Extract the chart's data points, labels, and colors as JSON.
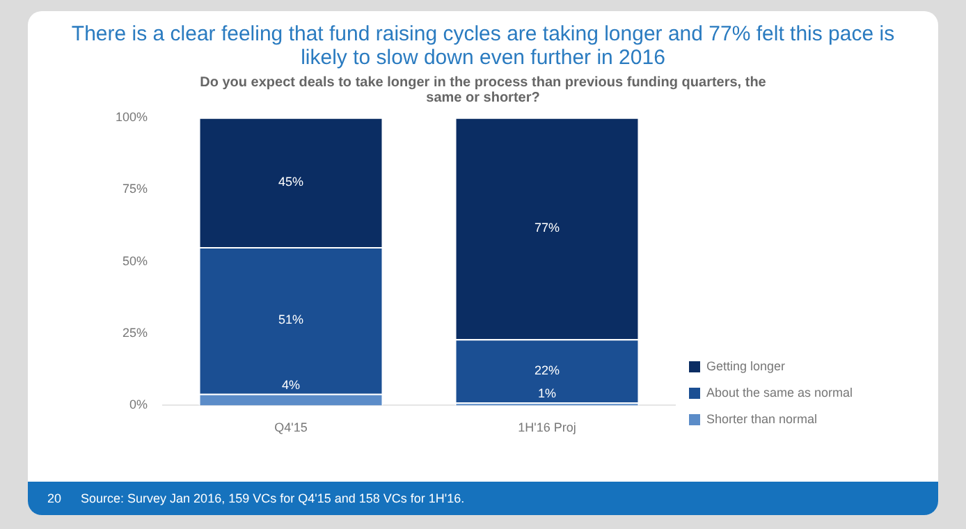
{
  "chart_data": {
    "type": "bar",
    "stacked": true,
    "title": "There is a clear feeling that fund raising cycles are taking longer and 77% felt this pace is likely to slow down even further in 2016",
    "subtitle": "Do you expect deals to take longer in the process than previous funding quarters, the same or shorter?",
    "categories": [
      "Q4'15",
      "1H'16 Proj"
    ],
    "series": [
      {
        "name": "Shorter than normal",
        "color": "#5b8cc8",
        "values": [
          4,
          1
        ],
        "value_labels": [
          "4%",
          "1%"
        ]
      },
      {
        "name": "About the same as normal",
        "color": "#1b4f93",
        "values": [
          51,
          22
        ],
        "value_labels": [
          "51%",
          "22%"
        ]
      },
      {
        "name": "Getting longer",
        "color": "#0b2d63",
        "values": [
          45,
          77
        ],
        "value_labels": [
          "45%",
          "77%"
        ]
      }
    ],
    "ylim": [
      0,
      100
    ],
    "yticks": [
      {
        "value": 0,
        "label": "0%"
      },
      {
        "value": 25,
        "label": "25%"
      },
      {
        "value": 50,
        "label": "50%"
      },
      {
        "value": 75,
        "label": "75%"
      },
      {
        "value": 100,
        "label": "100%"
      }
    ],
    "grid": false,
    "legend": "bottom right",
    "annotations": [
      "20",
      "Source: Survey Jan 2016, 159 VCs for Q4'15 and 158 VCs for 1H'16."
    ]
  }
}
